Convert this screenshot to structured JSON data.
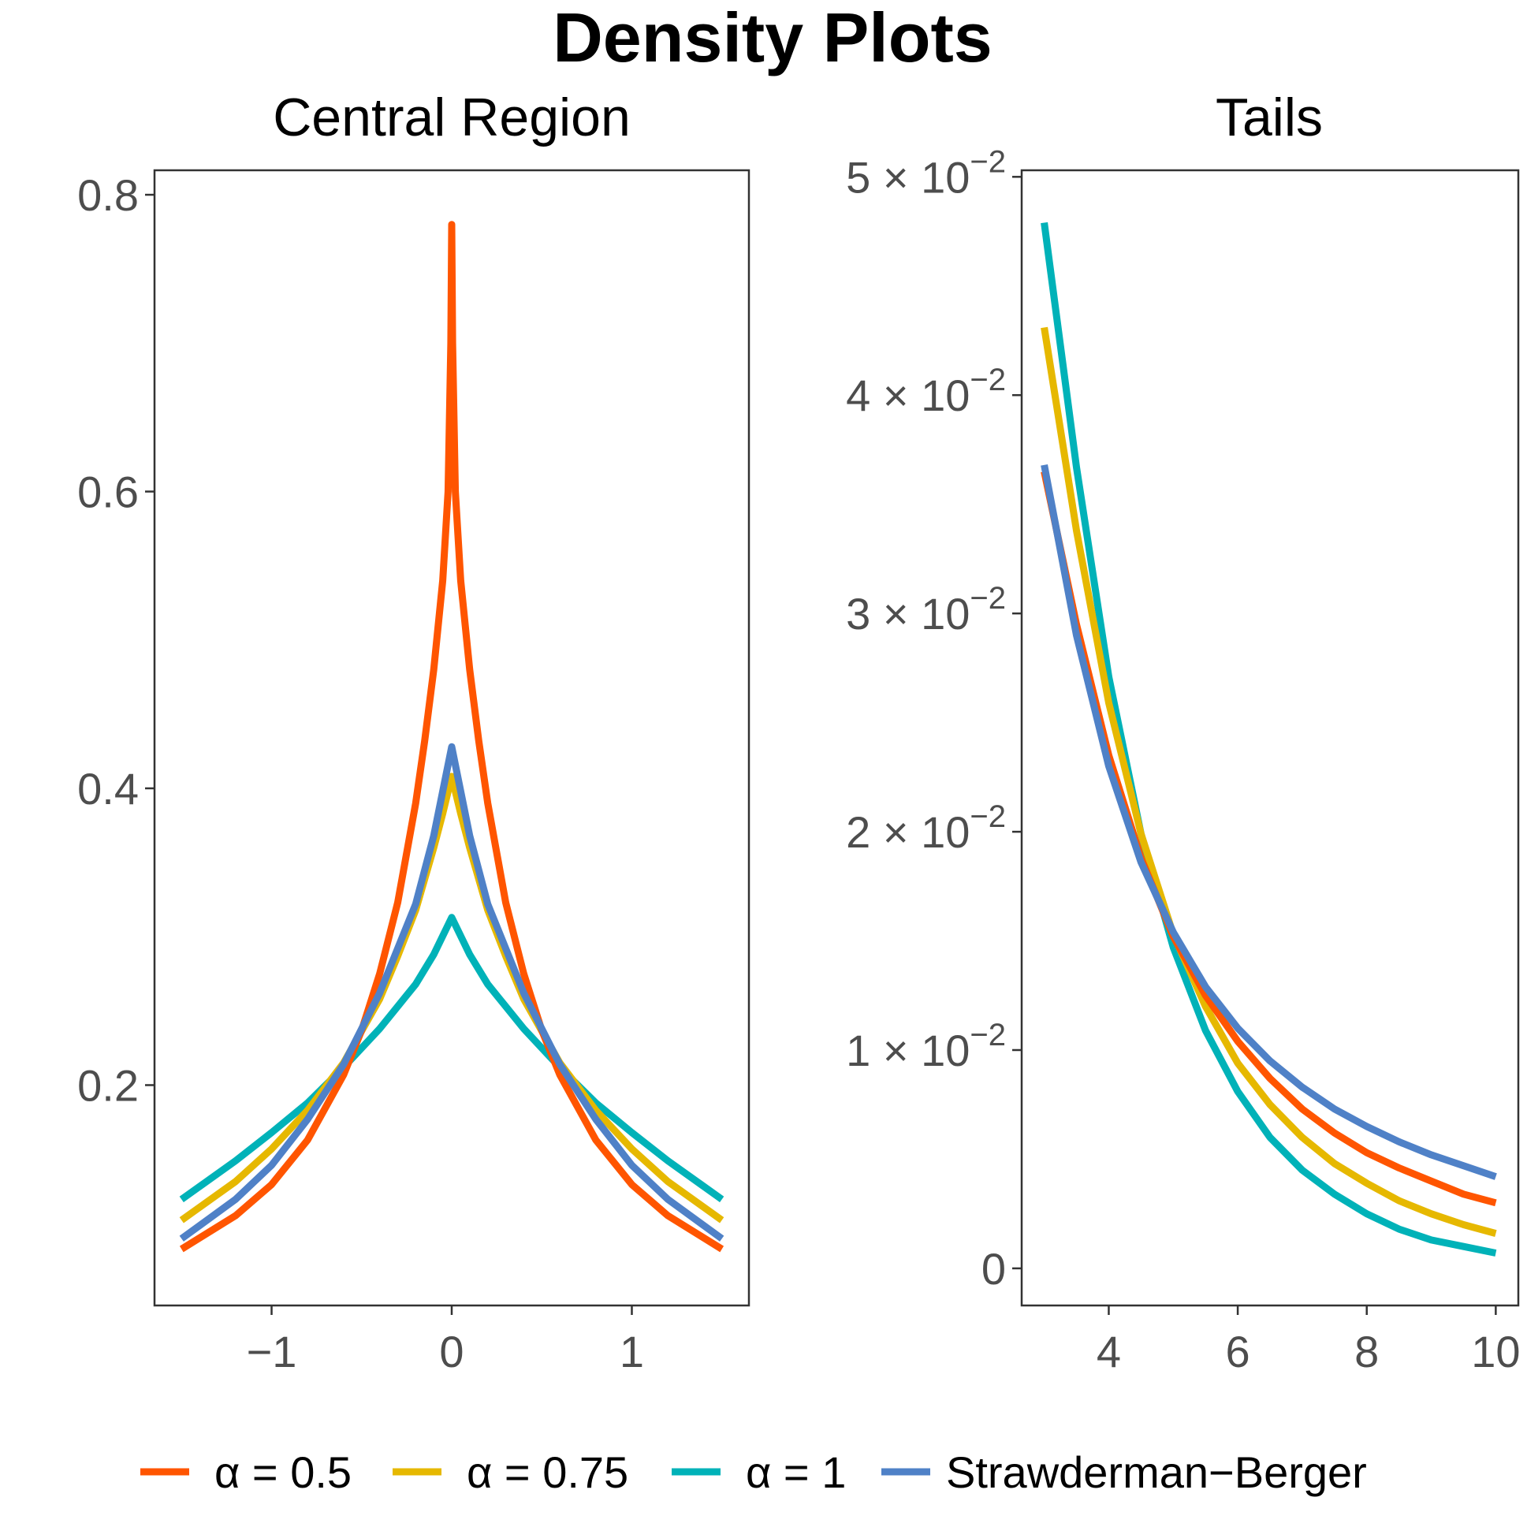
{
  "chart_data": {
    "title": "Density Plots",
    "type": "line",
    "series_styles": [
      {
        "key": "a05",
        "label": "α = 0.5",
        "color": "#FF5500"
      },
      {
        "key": "a075",
        "label": "α = 0.75",
        "color": "#E6B800"
      },
      {
        "key": "a1",
        "label": "α = 1",
        "color": "#00B2B8"
      },
      {
        "key": "sb",
        "label": "Strawderman−Berger",
        "color": "#4F81C7"
      }
    ],
    "panels": [
      {
        "id": "central",
        "title": "Central Region",
        "xlim": [
          -1.65,
          1.65
        ],
        "ylim": [
          0.0515,
          0.8165
        ],
        "xticks": [
          {
            "v": -1,
            "label": "−1"
          },
          {
            "v": 0,
            "label": "0"
          },
          {
            "v": 1,
            "label": "1"
          }
        ],
        "yticks": [
          {
            "v": 0.2,
            "label": "0.2"
          },
          {
            "v": 0.4,
            "label": "0.4"
          },
          {
            "v": 0.6,
            "label": "0.6"
          },
          {
            "v": 0.8,
            "label": "0.8"
          }
        ],
        "series": {
          "a05": {
            "x": [
              -1.5,
              -1.2,
              -1.0,
              -0.8,
              -0.6,
              -0.5,
              -0.4,
              -0.3,
              -0.2,
              -0.15,
              -0.1,
              -0.05,
              -0.02,
              -0.005,
              0,
              0.005,
              0.02,
              0.05,
              0.1,
              0.15,
              0.2,
              0.3,
              0.4,
              0.5,
              0.6,
              0.8,
              1.0,
              1.2,
              1.5
            ],
            "y": [
              0.0895,
              0.112,
              0.133,
              0.163,
              0.207,
              0.237,
              0.275,
              0.323,
              0.39,
              0.432,
              0.48,
              0.54,
              0.6,
              0.7,
              0.78,
              0.7,
              0.6,
              0.54,
              0.48,
              0.432,
              0.39,
              0.323,
              0.275,
              0.237,
              0.207,
              0.163,
              0.133,
              0.112,
              0.0895
            ]
          },
          "a075": {
            "x": [
              -1.5,
              -1.2,
              -1.0,
              -0.8,
              -0.6,
              -0.4,
              -0.3,
              -0.2,
              -0.1,
              -0.05,
              0,
              0.05,
              0.1,
              0.2,
              0.3,
              0.4,
              0.6,
              0.8,
              1.0,
              1.2,
              1.5
            ],
            "y": [
              0.109,
              0.135,
              0.157,
              0.183,
              0.215,
              0.258,
              0.287,
              0.318,
              0.36,
              0.383,
              0.408,
              0.383,
              0.36,
              0.318,
              0.287,
              0.258,
              0.215,
              0.183,
              0.157,
              0.135,
              0.109
            ]
          },
          "a1": {
            "x": [
              -1.5,
              -1.2,
              -1.0,
              -0.8,
              -0.6,
              -0.4,
              -0.2,
              -0.1,
              0,
              0.1,
              0.2,
              0.4,
              0.6,
              0.8,
              1.0,
              1.2,
              1.5
            ],
            "y": [
              0.123,
              0.149,
              0.168,
              0.188,
              0.212,
              0.238,
              0.268,
              0.288,
              0.313,
              0.288,
              0.268,
              0.238,
              0.212,
              0.188,
              0.168,
              0.149,
              0.123
            ]
          },
          "sb": {
            "x": [
              -1.5,
              -1.2,
              -1.0,
              -0.8,
              -0.6,
              -0.4,
              -0.2,
              -0.1,
              0,
              0.1,
              0.2,
              0.4,
              0.6,
              0.8,
              1.0,
              1.2,
              1.5
            ],
            "y": [
              0.0965,
              0.123,
              0.146,
              0.177,
              0.214,
              0.262,
              0.322,
              0.368,
              0.428,
              0.368,
              0.322,
              0.262,
              0.214,
              0.177,
              0.146,
              0.123,
              0.0965
            ]
          }
        }
      },
      {
        "id": "tails",
        "title": "Tails",
        "xlim": [
          2.65,
          10.35
        ],
        "ylim": [
          -0.0017,
          0.0503
        ],
        "xticks": [
          {
            "v": 4,
            "label": "4"
          },
          {
            "v": 6,
            "label": "6"
          },
          {
            "v": 8,
            "label": "8"
          },
          {
            "v": 10,
            "label": "10"
          }
        ],
        "yticks": [
          {
            "v": 0,
            "mant": "0",
            "exp": ""
          },
          {
            "v": 0.01,
            "mant": "1",
            "exp": "−2"
          },
          {
            "v": 0.02,
            "mant": "2",
            "exp": "−2"
          },
          {
            "v": 0.03,
            "mant": "3",
            "exp": "−2"
          },
          {
            "v": 0.04,
            "mant": "4",
            "exp": "−2"
          },
          {
            "v": 0.05,
            "mant": "5",
            "exp": "−2"
          }
        ],
        "tick_times": "×",
        "tick_base": "10",
        "series": {
          "a05": {
            "x": [
              3,
              3.5,
              4,
              4.5,
              5,
              5.5,
              6,
              6.5,
              7,
              7.5,
              8,
              8.5,
              9,
              9.5,
              10
            ],
            "y": [
              0.0365,
              0.0295,
              0.0235,
              0.0188,
              0.0152,
              0.0125,
              0.0104,
              0.0087,
              0.0073,
              0.0062,
              0.0053,
              0.0046,
              0.004,
              0.0034,
              0.003
            ]
          },
          "a075": {
            "x": [
              3,
              3.5,
              4,
              4.5,
              5,
              5.5,
              6,
              6.5,
              7,
              7.5,
              8,
              8.5,
              9,
              9.5,
              10
            ],
            "y": [
              0.0431,
              0.0338,
              0.0259,
              0.0199,
              0.0153,
              0.012,
              0.0094,
              0.0075,
              0.006,
              0.0048,
              0.0039,
              0.0031,
              0.0025,
              0.002,
              0.0016
            ]
          },
          "a1": {
            "x": [
              3,
              3.5,
              4,
              4.5,
              5,
              5.5,
              6,
              6.5,
              7,
              7.5,
              8,
              8.5,
              9,
              9.5,
              10
            ],
            "y": [
              0.0479,
              0.0367,
              0.0271,
              0.0199,
              0.0147,
              0.0109,
              0.0081,
              0.006,
              0.0045,
              0.0034,
              0.0025,
              0.0018,
              0.0013,
              0.001,
              0.0007
            ]
          },
          "sb": {
            "x": [
              3,
              3.5,
              4,
              4.5,
              5,
              5.5,
              6,
              6.5,
              7,
              7.5,
              8,
              8.5,
              9,
              9.5,
              10
            ],
            "y": [
              0.0368,
              0.029,
              0.023,
              0.0186,
              0.0154,
              0.0129,
              0.011,
              0.0095,
              0.0083,
              0.0073,
              0.0065,
              0.0058,
              0.0052,
              0.0047,
              0.0042
            ]
          }
        }
      }
    ]
  }
}
